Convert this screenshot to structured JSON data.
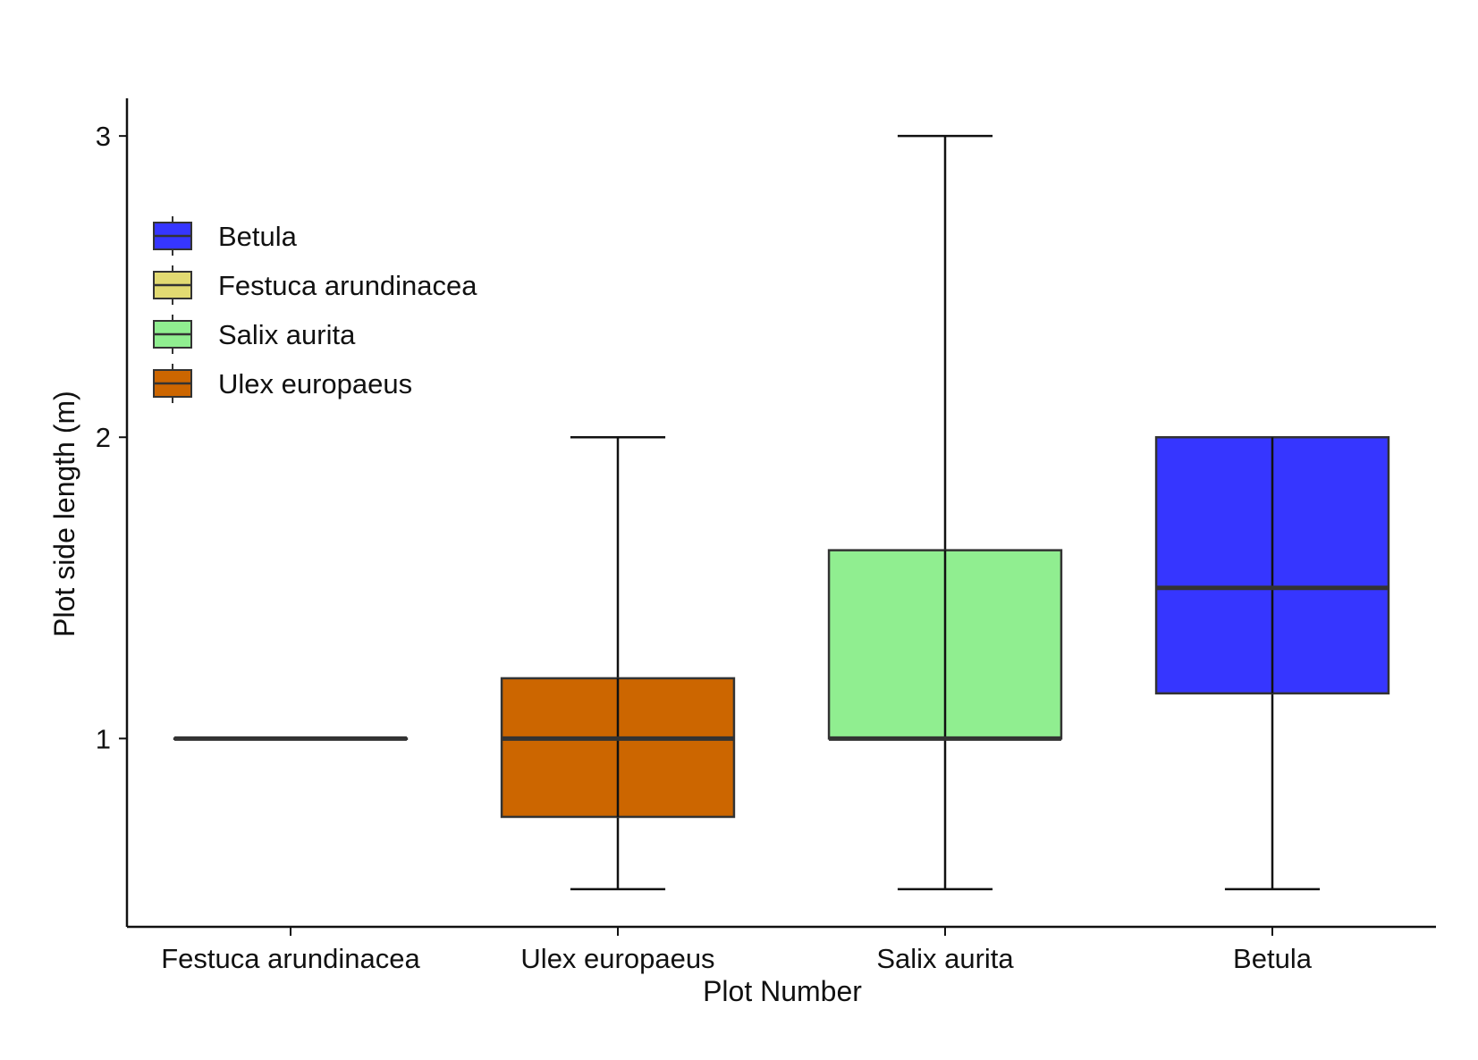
{
  "chart_data": {
    "type": "boxplot",
    "title": "",
    "xlabel": "Plot Number",
    "ylabel": "Plot side length (m)",
    "ylim": [
      0.375,
      3.125
    ],
    "yticks": [
      1,
      2,
      3
    ],
    "grid": false,
    "legend_position": "top-left",
    "categories": [
      "Festuca arundinacea",
      "Ulex europaeus",
      "Salix aurita",
      "Betula"
    ],
    "series": [
      {
        "name": "Festuca arundinacea",
        "color": "#E2DA72",
        "min": 1.0,
        "q1": 1.0,
        "median": 1.0,
        "q3": 1.0,
        "max": 1.0
      },
      {
        "name": "Ulex europaeus",
        "color": "#CC6600",
        "min": 0.5,
        "q1": 0.74,
        "median": 1.0,
        "q3": 1.2,
        "max": 2.0
      },
      {
        "name": "Salix aurita",
        "color": "#90EE90",
        "min": 0.5,
        "q1": 1.0,
        "median": 1.0,
        "q3": 1.625,
        "max": 3.0
      },
      {
        "name": "Betula",
        "color": "#3636FF",
        "min": 0.5,
        "q1": 1.15,
        "median": 1.5,
        "q3": 2.0,
        "max": 2.0
      }
    ],
    "legend": {
      "entries": [
        {
          "label": "Betula",
          "color": "#3636FF"
        },
        {
          "label": "Festuca arundinacea",
          "color": "#E2DA72"
        },
        {
          "label": "Salix aurita",
          "color": "#90EE90"
        },
        {
          "label": "Ulex europaeus",
          "color": "#CC6600"
        }
      ]
    }
  }
}
